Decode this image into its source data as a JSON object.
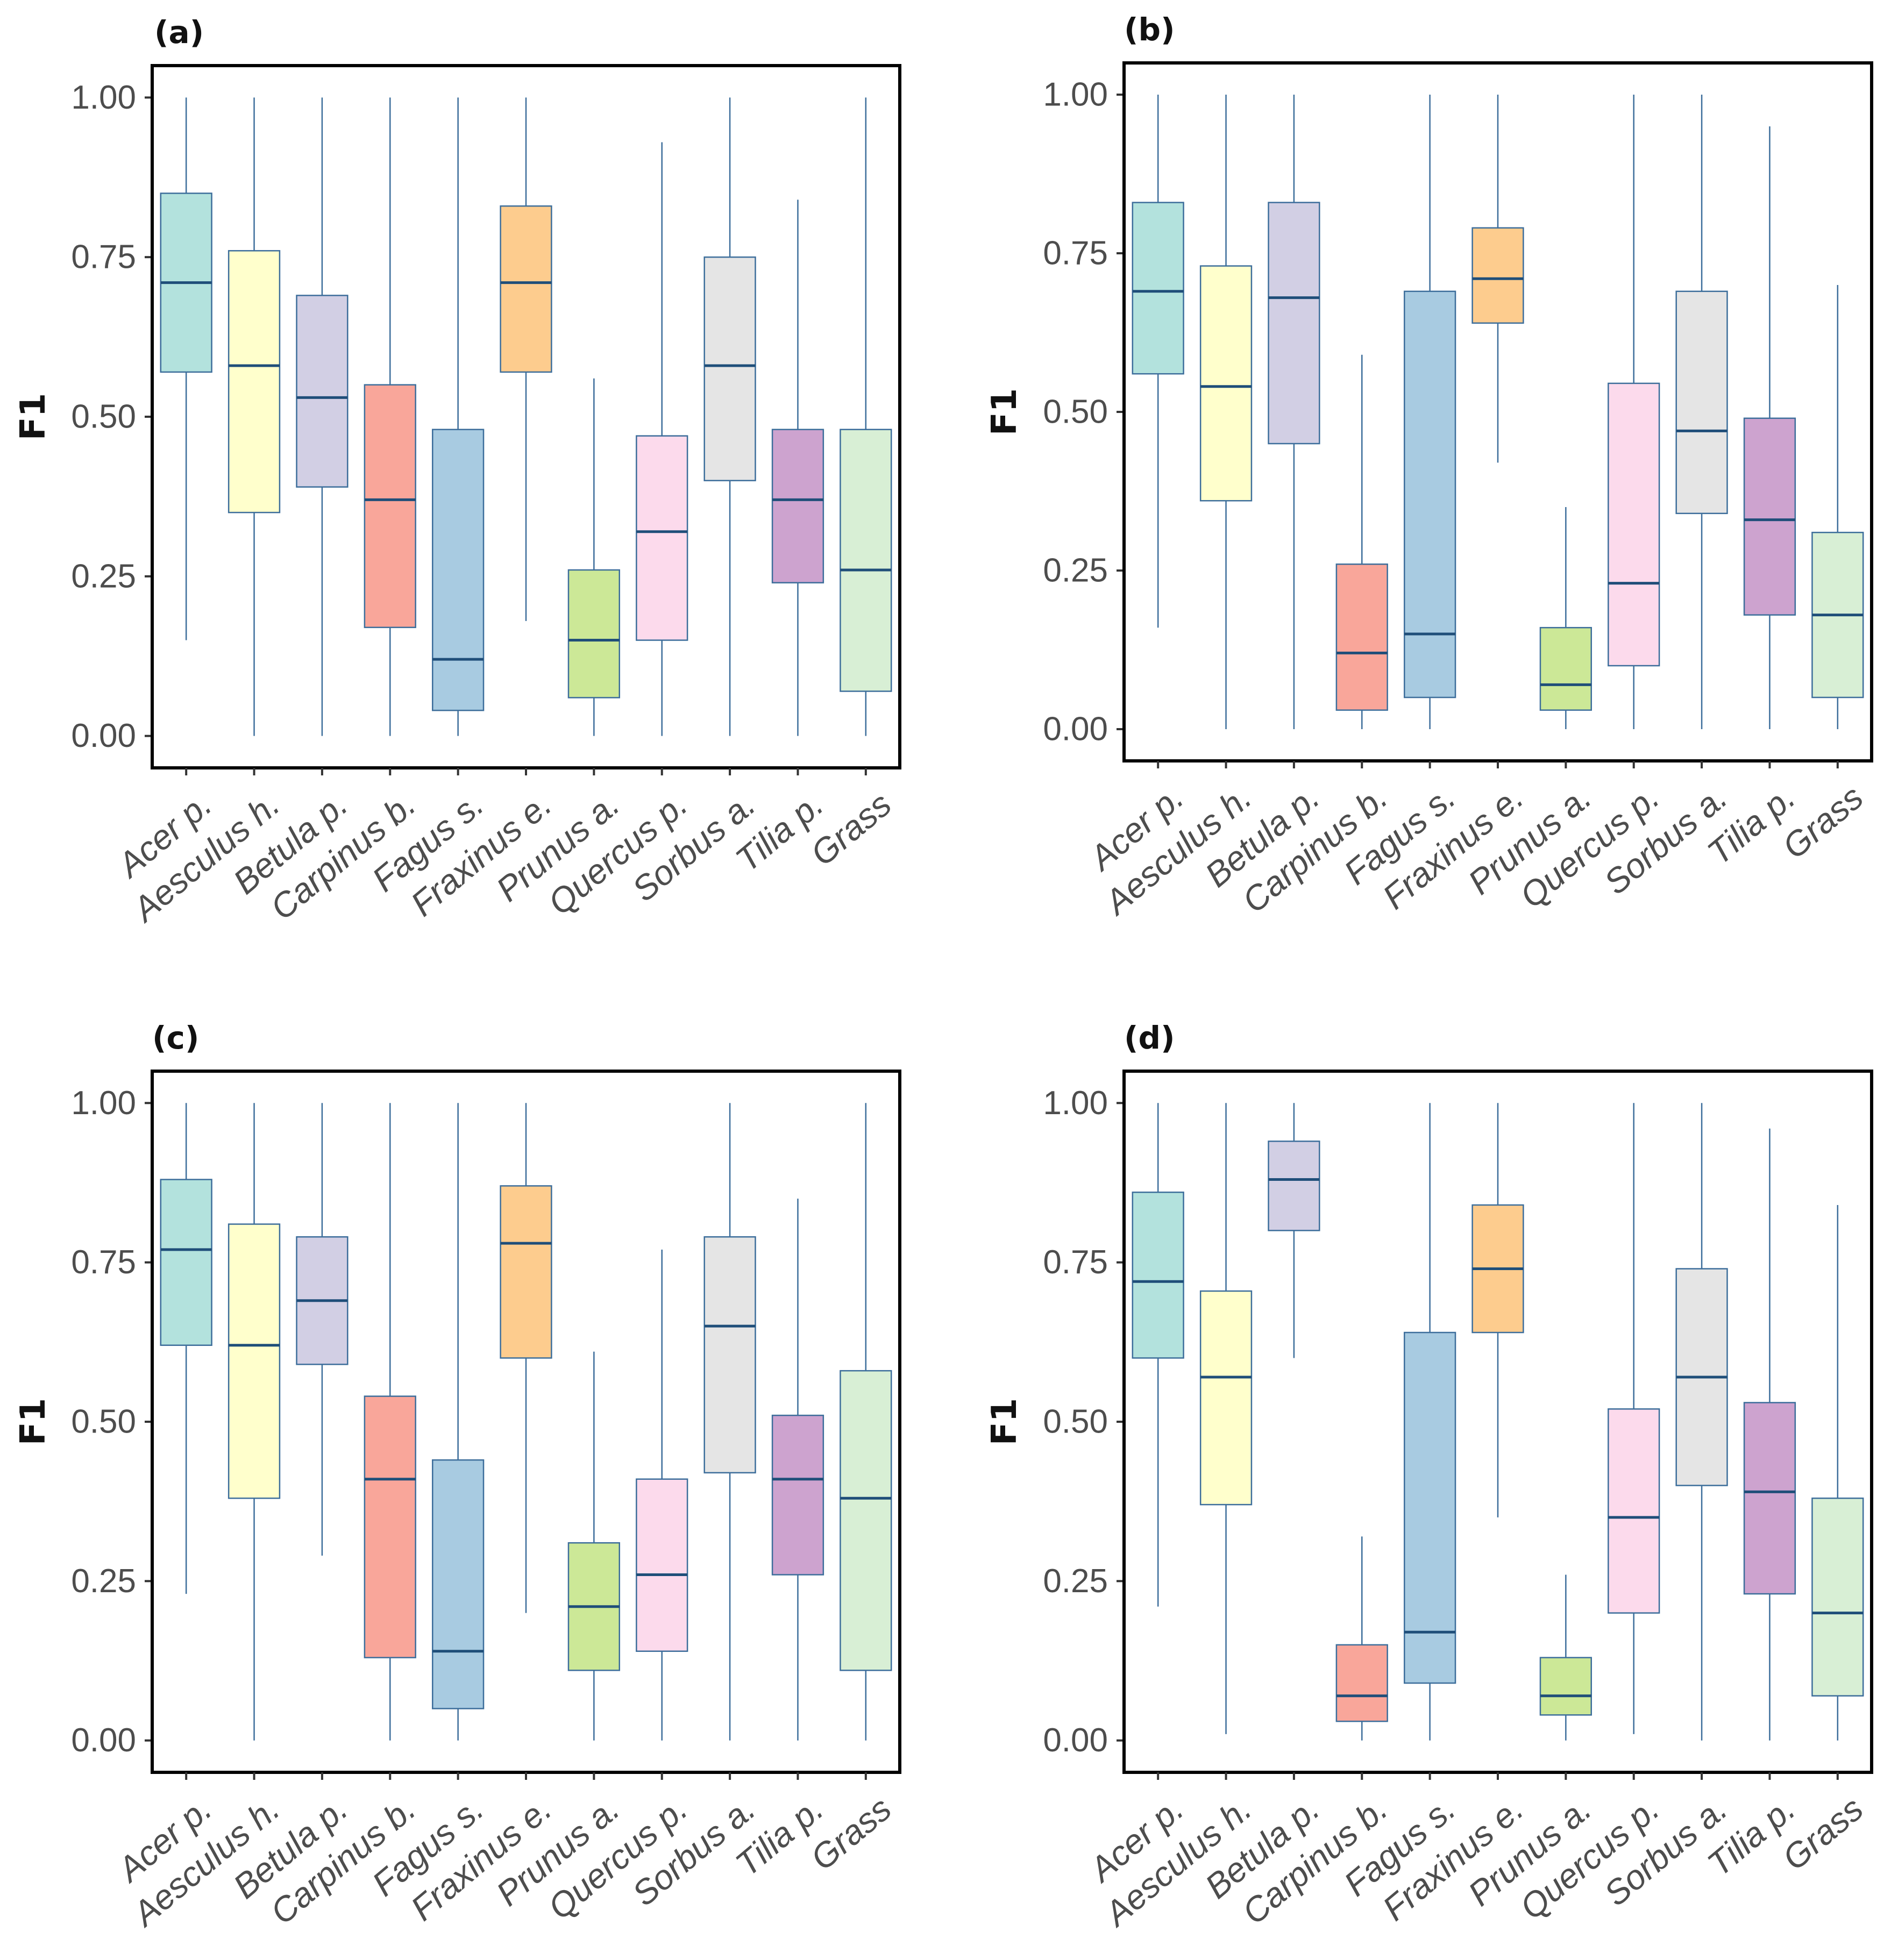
{
  "chart_data": [
    {
      "type": "boxplot",
      "panel_label": "(a)",
      "ylabel": "F1",
      "ylim": [
        -0.05,
        1.05
      ],
      "yticks": [
        "0.00",
        "0.25",
        "0.50",
        "0.75",
        "1.00"
      ],
      "categories": [
        "Acer p.",
        "Aesculus h.",
        "Betula p.",
        "Carpinus b.",
        "Fagus s.",
        "Fraxinus e.",
        "Prunus a.",
        "Quercus p.",
        "Sorbus a.",
        "Tilia p.",
        "Grass"
      ],
      "boxes": [
        {
          "min": 0.15,
          "q1": 0.57,
          "median": 0.71,
          "q3": 0.85,
          "max": 1.0
        },
        {
          "min": 0.0,
          "q1": 0.35,
          "median": 0.58,
          "q3": 0.76,
          "max": 1.0
        },
        {
          "min": 0.0,
          "q1": 0.39,
          "median": 0.53,
          "q3": 0.69,
          "max": 1.0
        },
        {
          "min": 0.0,
          "q1": 0.17,
          "median": 0.37,
          "q3": 0.55,
          "max": 1.0
        },
        {
          "min": 0.0,
          "q1": 0.04,
          "median": 0.12,
          "q3": 0.48,
          "max": 1.0
        },
        {
          "min": 0.18,
          "q1": 0.57,
          "median": 0.71,
          "q3": 0.83,
          "max": 1.0
        },
        {
          "min": 0.0,
          "q1": 0.06,
          "median": 0.15,
          "q3": 0.26,
          "max": 0.56
        },
        {
          "min": 0.0,
          "q1": 0.15,
          "median": 0.32,
          "q3": 0.47,
          "max": 0.93
        },
        {
          "min": 0.0,
          "q1": 0.4,
          "median": 0.58,
          "q3": 0.75,
          "max": 1.0
        },
        {
          "min": 0.0,
          "q1": 0.24,
          "median": 0.37,
          "q3": 0.48,
          "max": 0.84
        },
        {
          "min": 0.0,
          "q1": 0.07,
          "median": 0.26,
          "q3": 0.48,
          "max": 1.0
        }
      ]
    },
    {
      "type": "boxplot",
      "panel_label": "(b)",
      "ylabel": "F1",
      "ylim": [
        -0.05,
        1.05
      ],
      "yticks": [
        "0.00",
        "0.25",
        "0.50",
        "0.75",
        "1.00"
      ],
      "categories": [
        "Acer p.",
        "Aesculus h.",
        "Betula p.",
        "Carpinus b.",
        "Fagus s.",
        "Fraxinus e.",
        "Prunus a.",
        "Quercus p.",
        "Sorbus a.",
        "Tilia p.",
        "Grass"
      ],
      "boxes": [
        {
          "min": 0.16,
          "q1": 0.56,
          "median": 0.69,
          "q3": 0.83,
          "max": 1.0
        },
        {
          "min": 0.0,
          "q1": 0.36,
          "median": 0.54,
          "q3": 0.73,
          "max": 1.0
        },
        {
          "min": 0.0,
          "q1": 0.45,
          "median": 0.68,
          "q3": 0.83,
          "max": 1.0
        },
        {
          "min": 0.0,
          "q1": 0.03,
          "median": 0.12,
          "q3": 0.26,
          "max": 0.59
        },
        {
          "min": 0.0,
          "q1": 0.05,
          "median": 0.15,
          "q3": 0.69,
          "max": 1.0
        },
        {
          "min": 0.42,
          "q1": 0.64,
          "median": 0.71,
          "q3": 0.79,
          "max": 1.0
        },
        {
          "min": 0.0,
          "q1": 0.03,
          "median": 0.07,
          "q3": 0.16,
          "max": 0.35
        },
        {
          "min": 0.0,
          "q1": 0.1,
          "median": 0.23,
          "q3": 0.545,
          "max": 1.0
        },
        {
          "min": 0.0,
          "q1": 0.34,
          "median": 0.47,
          "q3": 0.69,
          "max": 1.0
        },
        {
          "min": 0.0,
          "q1": 0.18,
          "median": 0.33,
          "q3": 0.49,
          "max": 0.95
        },
        {
          "min": 0.0,
          "q1": 0.05,
          "median": 0.18,
          "q3": 0.31,
          "max": 0.7
        }
      ]
    },
    {
      "type": "boxplot",
      "panel_label": "(c)",
      "ylabel": "F1",
      "ylim": [
        -0.05,
        1.05
      ],
      "yticks": [
        "0.00",
        "0.25",
        "0.50",
        "0.75",
        "1.00"
      ],
      "categories": [
        "Acer p.",
        "Aesculus h.",
        "Betula p.",
        "Carpinus b.",
        "Fagus s.",
        "Fraxinus e.",
        "Prunus a.",
        "Quercus p.",
        "Sorbus a.",
        "Tilia p.",
        "Grass"
      ],
      "boxes": [
        {
          "min": 0.23,
          "q1": 0.62,
          "median": 0.77,
          "q3": 0.88,
          "max": 1.0
        },
        {
          "min": 0.0,
          "q1": 0.38,
          "median": 0.62,
          "q3": 0.81,
          "max": 1.0
        },
        {
          "min": 0.29,
          "q1": 0.59,
          "median": 0.69,
          "q3": 0.79,
          "max": 1.0
        },
        {
          "min": 0.0,
          "q1": 0.13,
          "median": 0.41,
          "q3": 0.54,
          "max": 1.0
        },
        {
          "min": 0.0,
          "q1": 0.05,
          "median": 0.14,
          "q3": 0.44,
          "max": 1.0
        },
        {
          "min": 0.2,
          "q1": 0.6,
          "median": 0.78,
          "q3": 0.87,
          "max": 1.0
        },
        {
          "min": 0.0,
          "q1": 0.11,
          "median": 0.21,
          "q3": 0.31,
          "max": 0.61
        },
        {
          "min": 0.0,
          "q1": 0.14,
          "median": 0.26,
          "q3": 0.41,
          "max": 0.77
        },
        {
          "min": 0.0,
          "q1": 0.42,
          "median": 0.65,
          "q3": 0.79,
          "max": 1.0
        },
        {
          "min": 0.0,
          "q1": 0.26,
          "median": 0.41,
          "q3": 0.51,
          "max": 0.85
        },
        {
          "min": 0.0,
          "q1": 0.11,
          "median": 0.38,
          "q3": 0.58,
          "max": 1.0
        }
      ]
    },
    {
      "type": "boxplot",
      "panel_label": "(d)",
      "ylabel": "F1",
      "ylim": [
        -0.05,
        1.05
      ],
      "yticks": [
        "0.00",
        "0.25",
        "0.50",
        "0.75",
        "1.00"
      ],
      "categories": [
        "Acer p.",
        "Aesculus h.",
        "Betula p.",
        "Carpinus b.",
        "Fagus s.",
        "Fraxinus e.",
        "Prunus a.",
        "Quercus p.",
        "Sorbus a.",
        "Tilia p.",
        "Grass"
      ],
      "boxes": [
        {
          "min": 0.21,
          "q1": 0.6,
          "median": 0.72,
          "q3": 0.86,
          "max": 1.0
        },
        {
          "min": 0.01,
          "q1": 0.37,
          "median": 0.57,
          "q3": 0.705,
          "max": 1.0
        },
        {
          "min": 0.6,
          "q1": 0.8,
          "median": 0.88,
          "q3": 0.94,
          "max": 1.0
        },
        {
          "min": 0.0,
          "q1": 0.03,
          "median": 0.07,
          "q3": 0.15,
          "max": 0.32
        },
        {
          "min": 0.0,
          "q1": 0.09,
          "median": 0.17,
          "q3": 0.64,
          "max": 1.0
        },
        {
          "min": 0.35,
          "q1": 0.64,
          "median": 0.74,
          "q3": 0.84,
          "max": 1.0
        },
        {
          "min": 0.0,
          "q1": 0.04,
          "median": 0.07,
          "q3": 0.13,
          "max": 0.26
        },
        {
          "min": 0.01,
          "q1": 0.2,
          "median": 0.35,
          "q3": 0.52,
          "max": 1.0
        },
        {
          "min": 0.0,
          "q1": 0.4,
          "median": 0.57,
          "q3": 0.74,
          "max": 1.0
        },
        {
          "min": 0.0,
          "q1": 0.23,
          "median": 0.39,
          "q3": 0.53,
          "max": 0.96
        },
        {
          "min": 0.0,
          "q1": 0.07,
          "median": 0.2,
          "q3": 0.38,
          "max": 0.84
        }
      ]
    }
  ],
  "colors": {
    "fills": [
      "#b3e2dd",
      "#ffffcc",
      "#d2cfe4",
      "#f9a69a",
      "#a8cbe1",
      "#fdcc8e",
      "#cce897",
      "#fcdaec",
      "#e5e5e5",
      "#cda3cf",
      "#d8efd5"
    ],
    "box_stroke": "#3d6e9b",
    "whisker": "#3d6e9b",
    "median": "#1f4e79",
    "axis": "#000000"
  }
}
